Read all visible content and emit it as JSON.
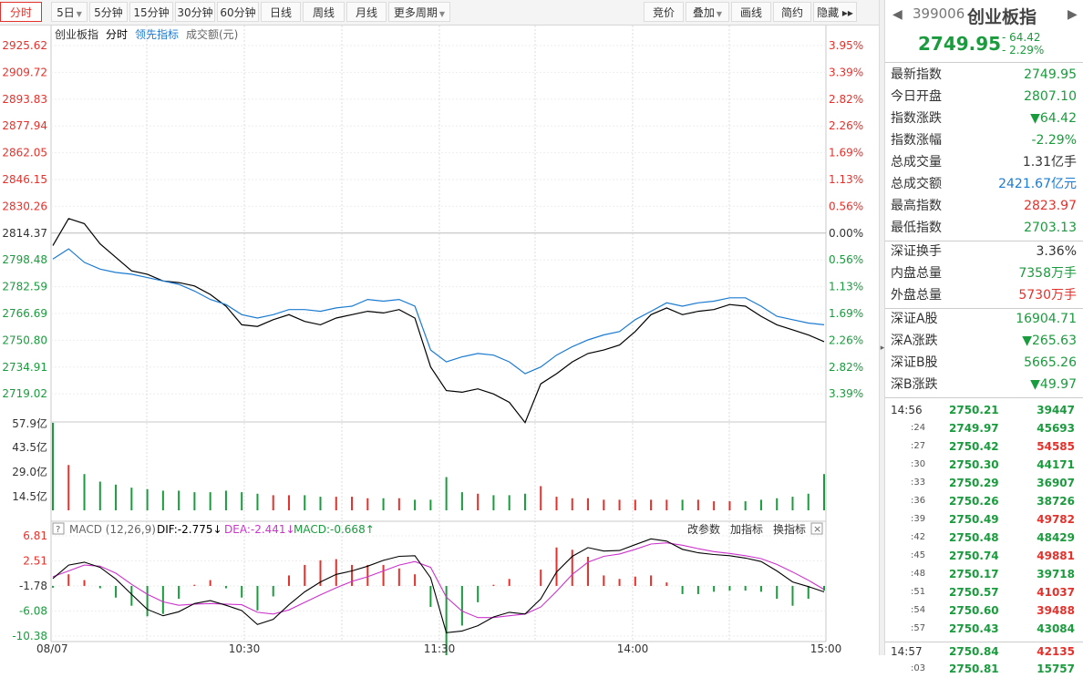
{
  "toolbar": {
    "left": [
      {
        "label": "分时",
        "active": true,
        "drop": false
      },
      {
        "label": "5日",
        "drop": true
      },
      {
        "label": "5分钟"
      },
      {
        "label": "15分钟"
      },
      {
        "label": "30分钟"
      },
      {
        "label": "60分钟"
      },
      {
        "label": "日线"
      },
      {
        "label": "周线"
      },
      {
        "label": "月线"
      },
      {
        "label": "更多周期",
        "drop": true
      }
    ],
    "right": [
      {
        "label": "竞价"
      },
      {
        "label": "叠加",
        "drop": true
      },
      {
        "label": "画线"
      },
      {
        "label": "简约"
      },
      {
        "label": "隐藏 ▸▸"
      }
    ]
  },
  "chart_legend": {
    "name": "创业板指",
    "mode": "分时",
    "lead": "领先指标",
    "volume": "成交额(元)"
  },
  "price_axis": {
    "left": [
      "2925.62",
      "2909.72",
      "2893.83",
      "2877.94",
      "2862.05",
      "2846.15",
      "2830.26",
      "2814.37",
      "2798.48",
      "2782.59",
      "2766.69",
      "2750.80",
      "2734.91",
      "2719.02"
    ],
    "right": [
      "3.95%",
      "3.39%",
      "2.82%",
      "2.26%",
      "1.69%",
      "1.13%",
      "0.56%",
      "0.00%",
      "0.56%",
      "1.13%",
      "1.69%",
      "2.26%",
      "2.82%",
      "3.39%"
    ]
  },
  "volume_axis": [
    "57.9亿",
    "43.5亿",
    "29.0亿",
    "14.5亿"
  ],
  "macd": {
    "title": "MACD (12,26,9)",
    "dif": "DIF:-2.775",
    "dea": "DEA:-2.441",
    "macd": "MACD:-0.668",
    "axis": [
      "6.81",
      "2.51",
      "-1.78",
      "-6.08",
      "-10.38"
    ],
    "buttons": [
      "改参数",
      "加指标",
      "换指标"
    ]
  },
  "time_axis": [
    "08/07",
    "10:30",
    "11:30",
    "14:00",
    "15:00"
  ],
  "chart_data": {
    "type": "line",
    "title": "创业板指",
    "prev_close": 2814.37,
    "ylim": [
      2703.13,
      2925.62
    ],
    "times": [
      "09:30",
      "09:35",
      "09:40",
      "09:45",
      "09:50",
      "09:55",
      "10:00",
      "10:05",
      "10:10",
      "10:15",
      "10:20",
      "10:25",
      "10:30",
      "10:35",
      "10:40",
      "10:45",
      "10:50",
      "10:55",
      "11:00",
      "11:05",
      "11:10",
      "11:15",
      "11:20",
      "11:25",
      "11:30",
      "13:00",
      "13:05",
      "13:10",
      "13:15",
      "13:20",
      "13:25",
      "13:30",
      "13:35",
      "13:40",
      "13:45",
      "13:50",
      "13:55",
      "14:00",
      "14:05",
      "14:10",
      "14:15",
      "14:20",
      "14:25",
      "14:30",
      "14:35",
      "14:40",
      "14:45",
      "14:50",
      "14:55",
      "15:00"
    ],
    "series": [
      {
        "name": "创业板指",
        "color": "#000000",
        "values": [
          2807,
          2823,
          2820,
          2808,
          2800,
          2792,
          2790,
          2786,
          2785,
          2783,
          2778,
          2771,
          2760,
          2759,
          2763,
          2766,
          2762,
          2760,
          2764,
          2766,
          2768,
          2767,
          2769,
          2764,
          2735,
          2721,
          2720,
          2722,
          2719,
          2714,
          2702,
          2725,
          2731,
          2738,
          2743,
          2745,
          2748,
          2756,
          2766,
          2770,
          2766,
          2768,
          2769,
          2772,
          2771,
          2765,
          2760,
          2757,
          2754,
          2750
        ]
      },
      {
        "name": "领先指标",
        "color": "#1b7bd1",
        "values": [
          2799,
          2805,
          2797,
          2793,
          2791,
          2790,
          2788,
          2786,
          2784,
          2780,
          2775,
          2772,
          2766,
          2764,
          2766,
          2769,
          2769,
          2768,
          2770,
          2771,
          2775,
          2774,
          2775,
          2771,
          2745,
          2738,
          2741,
          2743,
          2742,
          2738,
          2731,
          2735,
          2742,
          2747,
          2751,
          2754,
          2756,
          2763,
          2768,
          2773,
          2771,
          2773,
          2774,
          2776,
          2776,
          2771,
          2765,
          2763,
          2761,
          2760
        ]
      }
    ],
    "volume_values": [
      57.9,
      30,
      24,
      19,
      17,
      15,
      14,
      13,
      13,
      12,
      12,
      13,
      12,
      11,
      10,
      10,
      10,
      9,
      9,
      9,
      8,
      8,
      8,
      7,
      7,
      22,
      12,
      11,
      10,
      10,
      11,
      16,
      9,
      8,
      8,
      7,
      7,
      7,
      7,
      7,
      7,
      7,
      6,
      6,
      6,
      7,
      8,
      9,
      11,
      24
    ],
    "macd_values": {
      "dif": [
        -0.5,
        1.8,
        2.3,
        1.4,
        -0.6,
        -3.2,
        -5.8,
        -6.9,
        -6.2,
        -4.8,
        -4.3,
        -5.1,
        -6.0,
        -8.4,
        -7.5,
        -5.0,
        -2.8,
        -1.1,
        0.2,
        0.8,
        1.6,
        2.6,
        3.3,
        3.4,
        -0.4,
        -9.8,
        -9.5,
        -8.6,
        -7.1,
        -6.3,
        -6.6,
        -4.0,
        0.6,
        3.3,
        4.8,
        4.2,
        4.3,
        5.3,
        6.3,
        5.9,
        4.5,
        3.9,
        3.6,
        3.4,
        3.0,
        2.4,
        0.8,
        -1.1,
        -1.9,
        -2.8
      ],
      "dea": [
        -0.2,
        0.8,
        1.8,
        1.6,
        0.4,
        -1.5,
        -3.2,
        -4.5,
        -5.1,
        -4.9,
        -4.8,
        -4.9,
        -5.0,
        -6.3,
        -6.6,
        -5.9,
        -4.6,
        -3.3,
        -2.1,
        -1.0,
        -0.2,
        0.8,
        1.8,
        2.4,
        1.4,
        -3.7,
        -6.1,
        -7.2,
        -7.2,
        -6.9,
        -6.6,
        -5.4,
        -2.7,
        0.2,
        2.3,
        3.3,
        3.7,
        4.5,
        5.4,
        5.6,
        5.2,
        4.6,
        4.1,
        3.8,
        3.4,
        2.9,
        1.9,
        0.6,
        -0.8,
        -2.4
      ],
      "bar": [
        -0.3,
        2.0,
        1.0,
        -0.4,
        -2.0,
        -3.4,
        -5.2,
        -4.8,
        -2.2,
        0.2,
        1.0,
        -0.4,
        -2.0,
        -4.2,
        -1.8,
        1.8,
        3.6,
        4.4,
        4.6,
        3.6,
        3.6,
        3.6,
        3.0,
        2.0,
        -3.6,
        -12.2,
        -6.8,
        -2.8,
        0.2,
        1.2,
        0,
        2.8,
        6.6,
        6.2,
        5.0,
        1.8,
        1.2,
        1.6,
        1.8,
        0.6,
        -1.4,
        -1.4,
        -1.0,
        -0.8,
        -0.8,
        -1.0,
        -2.2,
        -3.4,
        -2.2,
        -0.8
      ]
    }
  },
  "quote": {
    "code": "399006",
    "name": "创业板指",
    "price": "2749.95",
    "change": "- 64.42",
    "change_pct": "- 2.29%",
    "group1": [
      {
        "k": "最新指数",
        "v": "2749.95",
        "c": "green"
      },
      {
        "k": "今日开盘",
        "v": "2807.10",
        "c": "green"
      },
      {
        "k": "指数涨跌",
        "v": "▼64.42",
        "c": "green"
      },
      {
        "k": "指数涨幅",
        "v": "-2.29%",
        "c": "green"
      },
      {
        "k": "总成交量",
        "v": "1.31亿手",
        "c": "dark"
      },
      {
        "k": "总成交额",
        "v": "2421.67亿元",
        "c": "blue"
      },
      {
        "k": "最高指数",
        "v": "2823.97",
        "c": "red"
      },
      {
        "k": "最低指数",
        "v": "2703.13",
        "c": "green"
      }
    ],
    "group2": [
      {
        "k": "深证换手",
        "v": "3.36%",
        "c": "dark"
      },
      {
        "k": "内盘总量",
        "v": "7358万手",
        "c": "green"
      },
      {
        "k": "外盘总量",
        "v": "5730万手",
        "c": "red"
      }
    ],
    "group3": [
      {
        "k": "深证A股",
        "v": "16904.71",
        "c": "green"
      },
      {
        "k": "深A涨跌",
        "v": "▼265.63",
        "c": "green"
      },
      {
        "k": "深证B股",
        "v": "5665.26",
        "c": "green"
      },
      {
        "k": "深B涨跌",
        "v": "▼49.97",
        "c": "green"
      }
    ]
  },
  "ticks": [
    {
      "t": "14:56",
      "p": "2750.21",
      "v": "39447",
      "c": "green",
      "major": true
    },
    {
      "t": ":24",
      "p": "2749.97",
      "v": "45693",
      "c": "green"
    },
    {
      "t": ":27",
      "p": "2750.42",
      "v": "54585",
      "c": "red"
    },
    {
      "t": ":30",
      "p": "2750.30",
      "v": "44171",
      "c": "green"
    },
    {
      "t": ":33",
      "p": "2750.29",
      "v": "36907",
      "c": "green"
    },
    {
      "t": ":36",
      "p": "2750.26",
      "v": "38726",
      "c": "green"
    },
    {
      "t": ":39",
      "p": "2750.49",
      "v": "49782",
      "c": "red"
    },
    {
      "t": ":42",
      "p": "2750.48",
      "v": "48429",
      "c": "green"
    },
    {
      "t": ":45",
      "p": "2750.74",
      "v": "49881",
      "c": "red"
    },
    {
      "t": ":48",
      "p": "2750.17",
      "v": "39718",
      "c": "green"
    },
    {
      "t": ":51",
      "p": "2750.57",
      "v": "41037",
      "c": "red"
    },
    {
      "t": ":54",
      "p": "2750.60",
      "v": "39488",
      "c": "red"
    },
    {
      "t": ":57",
      "p": "2750.43",
      "v": "43084",
      "c": "green"
    },
    {
      "t": "14:57",
      "p": "2750.84",
      "v": "42135",
      "c": "red",
      "major": true
    },
    {
      "t": ":03",
      "p": "2750.81",
      "v": "15757",
      "c": "green"
    }
  ]
}
